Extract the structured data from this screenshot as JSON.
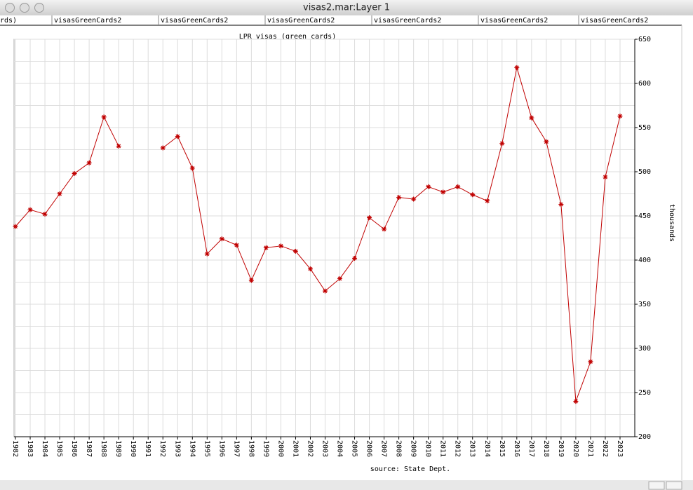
{
  "window": {
    "title": "visas2.mar:Layer 1",
    "tabs": [
      "rds)",
      "visasGreenCards2",
      "visasGreenCards2",
      "visasGreenCards2",
      "visasGreenCards2",
      "visasGreenCards2",
      "visasGreenCards2"
    ]
  },
  "chart_data": {
    "type": "line",
    "title": "LPR visas (green cards)",
    "y_label": "thousands",
    "source": "source: State Dept.",
    "x": [
      1982,
      1983,
      1984,
      1985,
      1986,
      1987,
      1988,
      1989,
      1990,
      1991,
      1992,
      1993,
      1994,
      1995,
      1996,
      1997,
      1998,
      1999,
      2000,
      2001,
      2002,
      2003,
      2004,
      2005,
      2006,
      2007,
      2008,
      2009,
      2010,
      2011,
      2012,
      2013,
      2014,
      2015,
      2016,
      2017,
      2018,
      2019,
      2020,
      2021,
      2022,
      2023
    ],
    "series": [
      {
        "name": "visasGreenCards2",
        "color": "#c00000",
        "values": [
          438,
          457,
          452,
          475,
          498,
          510,
          562,
          529,
          null,
          null,
          527,
          540,
          504,
          407,
          424,
          417,
          377,
          414,
          416,
          410,
          390,
          365,
          379,
          402,
          448,
          435,
          471,
          469,
          483,
          477,
          483,
          474,
          467,
          532,
          618,
          561,
          534,
          463,
          240,
          285,
          494,
          563
        ]
      }
    ],
    "xlim": [
      1982,
      2024
    ],
    "xticks": [
      1982,
      1983,
      1984,
      1985,
      1986,
      1987,
      1988,
      1989,
      1990,
      1991,
      1992,
      1993,
      1994,
      1995,
      1996,
      1997,
      1998,
      1999,
      2000,
      2001,
      2002,
      2003,
      2004,
      2005,
      2006,
      2007,
      2008,
      2009,
      2010,
      2011,
      2012,
      2013,
      2014,
      2015,
      2016,
      2017,
      2018,
      2019,
      2020,
      2021,
      2022,
      2023
    ],
    "ylim": [
      200,
      650
    ],
    "yticks": [
      200,
      250,
      300,
      350,
      400,
      450,
      500,
      550,
      600,
      650
    ],
    "y_axis_side": "right",
    "grid": true
  }
}
